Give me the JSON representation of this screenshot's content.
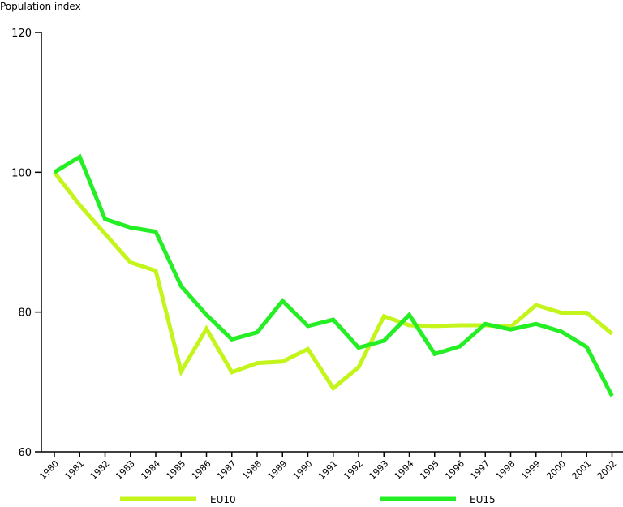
{
  "chart_data": {
    "type": "line",
    "ylabel": "Population index",
    "xlabel": "",
    "ylim": [
      60,
      120
    ],
    "yticks": [
      60,
      80,
      100,
      120
    ],
    "grid": false,
    "legend_position": "bottom",
    "categories": [
      "1980",
      "1981",
      "1982",
      "1983",
      "1984",
      "1985",
      "1986",
      "1987",
      "1988",
      "1989",
      "1990",
      "1991",
      "1992",
      "1993",
      "1994",
      "1995",
      "1996",
      "1997",
      "1998",
      "1999",
      "2000",
      "2001",
      "2002"
    ],
    "series": [
      {
        "name": "EU10",
        "color": "#c4f51b",
        "values": [
          100.0,
          95.3,
          91.2,
          87.1,
          85.9,
          71.5,
          77.6,
          71.4,
          72.7,
          72.9,
          74.7,
          69.1,
          72.1,
          79.4,
          78.1,
          78.0,
          78.1,
          78.1,
          77.9,
          81.0,
          79.9,
          79.9,
          76.9
        ]
      },
      {
        "name": "EU15",
        "color": "#24ee24",
        "values": [
          100.0,
          102.2,
          93.3,
          92.1,
          91.5,
          83.7,
          79.6,
          76.1,
          77.1,
          81.6,
          78.0,
          78.9,
          74.9,
          75.9,
          79.6,
          74.0,
          75.1,
          78.3,
          77.5,
          78.3,
          77.2,
          75.0,
          68.0
        ]
      }
    ]
  }
}
